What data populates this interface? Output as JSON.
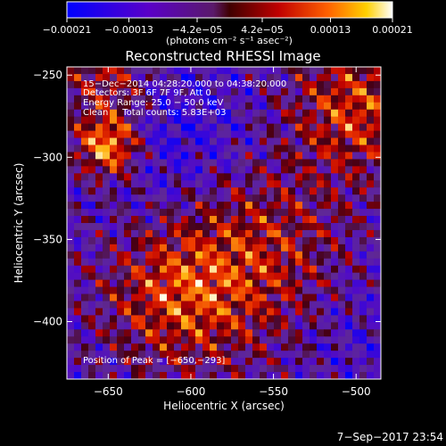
{
  "chart_data": {
    "type": "heatmap",
    "title": "Reconstructed RHESSI Image",
    "xlabel": "Heliocentric X (arcsec)",
    "ylabel": "Heliocentric Y (arcsec)",
    "xlim": [
      -675,
      -485
    ],
    "ylim": [
      -435,
      -245
    ],
    "x_ticks": [
      -650,
      -600,
      -550,
      -500
    ],
    "x_tick_labels": [
      "−650",
      "−600",
      "−550",
      "−500"
    ],
    "y_ticks": [
      -250,
      -300,
      -350,
      -400
    ],
    "y_tick_labels": [
      "−250",
      "−300",
      "−350",
      "−400"
    ],
    "colorbar": {
      "min": -0.00021,
      "max": 0.00021,
      "ticks": [
        -0.00021,
        -0.00013,
        -4.2e-05,
        4.2e-05,
        0.00013,
        0.00021
      ],
      "tick_labels": [
        "−0.00021",
        "−0.00013",
        "−4.2e−05",
        "4.2e−05",
        "0.00013",
        "0.00021"
      ],
      "units_label": "(photons cm⁻² s⁻¹ asec⁻²)"
    },
    "annotations": [
      "15−Dec−2014 04:28:20.000 to 04:38:20.000",
      "Detectors: 3F 6F 7F 9F, Att 0",
      "Energy Range: 25.0 − 50.0 keV",
      "Clean     Total counts: 5.83E+03"
    ],
    "peak_label": "Position of Peak = [−650,−293]",
    "peak": [
      -650,
      -293
    ],
    "colors": {
      "background": "#000000",
      "colormap": [
        "#0000ff",
        "#4a00b0",
        "#7e2ab0",
        "#b01010",
        "#e03000",
        "#ff8000",
        "#ffd000",
        "#ffffff"
      ]
    }
  },
  "footer_timestamp": "7−Sep−2017 23:54"
}
